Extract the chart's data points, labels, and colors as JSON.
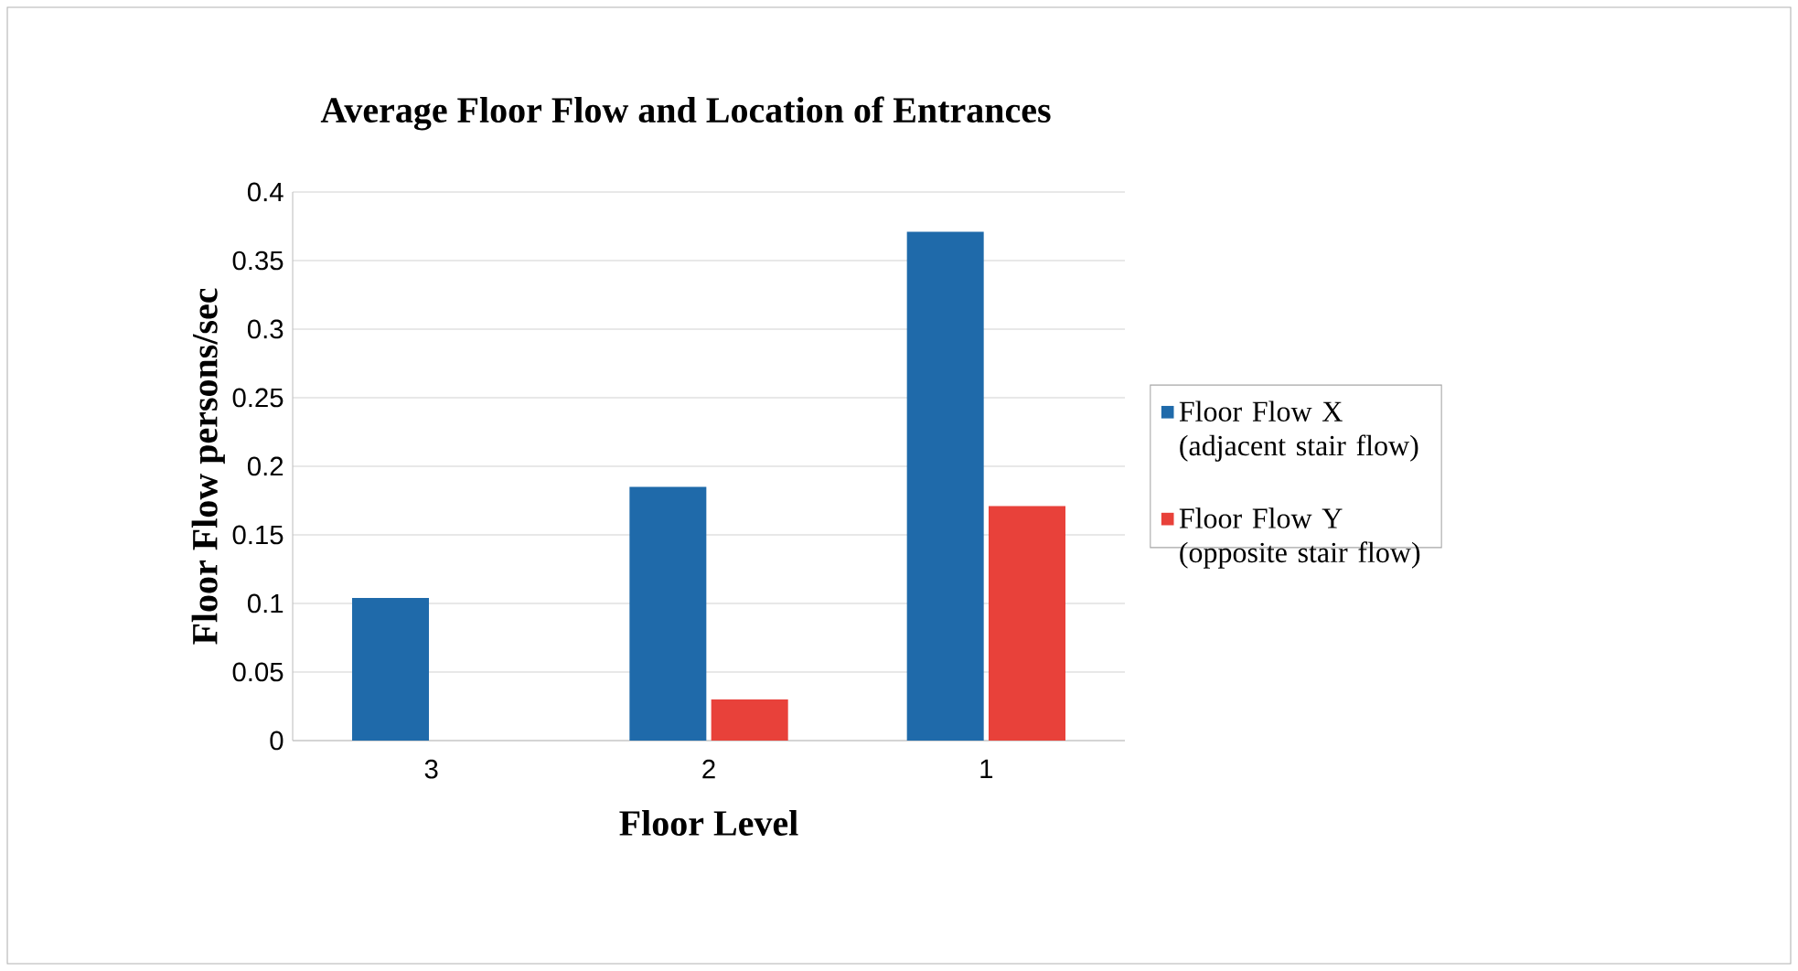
{
  "chart_data": {
    "type": "bar",
    "title": "Average Floor Flow and Location of Entrances",
    "xlabel": "Floor Level",
    "ylabel": "Floor Flow persons/sec",
    "categories": [
      "3",
      "2",
      "1"
    ],
    "series": [
      {
        "name": "Floor Flow X (adjacent stair flow)",
        "color": "#1f6aaa",
        "values": [
          0.104,
          0.185,
          0.371
        ]
      },
      {
        "name": "Floor Flow Y (opposite stair flow)",
        "color": "#e8413a",
        "values": [
          null,
          0.03,
          0.171
        ]
      }
    ],
    "ylim": [
      0,
      0.4
    ],
    "yticks": [
      0,
      0.05,
      0.1,
      0.15,
      0.2,
      0.25,
      0.3,
      0.35,
      0.4
    ],
    "grid": "y",
    "legend": "right"
  }
}
